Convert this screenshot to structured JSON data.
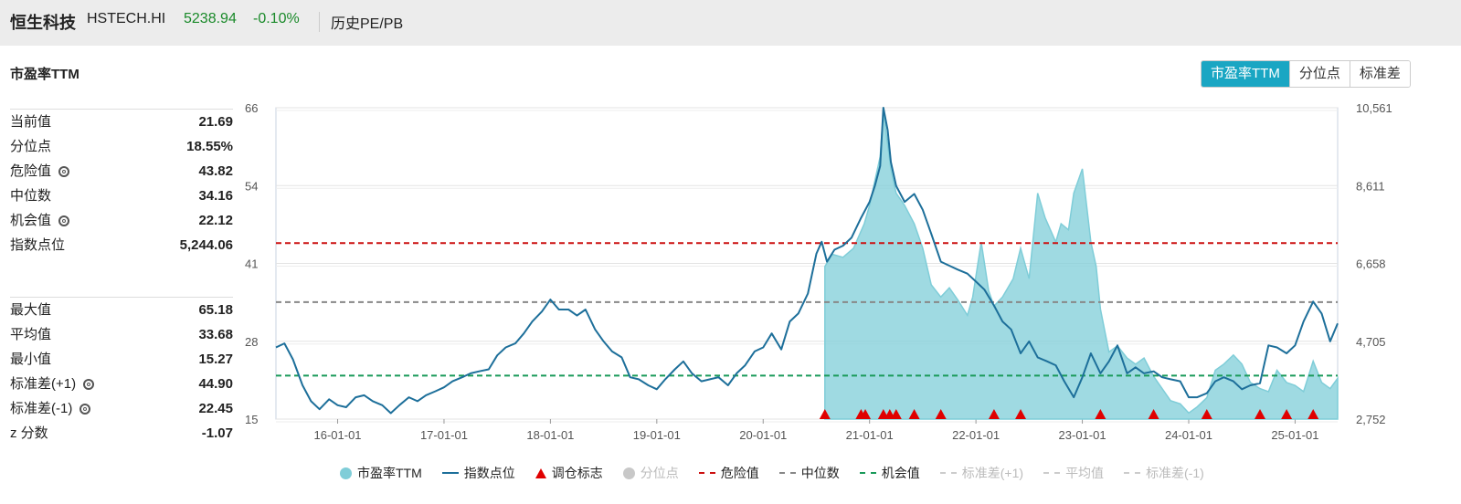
{
  "header": {
    "name": "恒生科技",
    "code": "HSTECH.HI",
    "price": "5238.94",
    "change": "-0.10%",
    "history_label": "历史PE/PB"
  },
  "section_title": "市盈率TTM",
  "tabs": [
    {
      "label": "市盈率TTM",
      "active": true
    },
    {
      "label": "分位点",
      "active": false
    },
    {
      "label": "标准差",
      "active": false
    }
  ],
  "stats_primary": [
    {
      "label": "当前值",
      "value": "21.69",
      "gear": false
    },
    {
      "label": "分位点",
      "value": "18.55%",
      "gear": false
    },
    {
      "label": "危险值",
      "value": "43.82",
      "gear": true
    },
    {
      "label": "中位数",
      "value": "34.16",
      "gear": false
    },
    {
      "label": "机会值",
      "value": "22.12",
      "gear": true
    },
    {
      "label": "指数点位",
      "value": "5,244.06",
      "gear": false
    }
  ],
  "stats_secondary": [
    {
      "label": "最大值",
      "value": "65.18",
      "gear": false
    },
    {
      "label": "平均值",
      "value": "33.68",
      "gear": false
    },
    {
      "label": "最小值",
      "value": "15.27",
      "gear": false
    },
    {
      "label": "标准差(+1)",
      "value": "44.90",
      "gear": true
    },
    {
      "label": "标准差(-1)",
      "value": "22.45",
      "gear": true
    },
    {
      "label": "z 分数",
      "value": "-1.07",
      "gear": false
    }
  ],
  "legend": [
    {
      "label": "市盈率TTM",
      "symbol": "circle",
      "color": "#7fcdd8",
      "enabled": true
    },
    {
      "label": "指数点位",
      "symbol": "line",
      "color": "#1d6f9a",
      "enabled": true
    },
    {
      "label": "调仓标志",
      "symbol": "triangle",
      "color": "#e00000",
      "enabled": true
    },
    {
      "label": "分位点",
      "symbol": "circle",
      "color": "#c8c8c8",
      "enabled": false
    },
    {
      "label": "危险值",
      "symbol": "dash",
      "color": "#cc1111",
      "enabled": true
    },
    {
      "label": "中位数",
      "symbol": "dash",
      "color": "#888888",
      "enabled": true
    },
    {
      "label": "机会值",
      "symbol": "dash",
      "color": "#1a9a5a",
      "enabled": true
    },
    {
      "label": "标准差(+1)",
      "symbol": "dash",
      "color": "#cccccc",
      "enabled": false
    },
    {
      "label": "平均值",
      "symbol": "dash",
      "color": "#cccccc",
      "enabled": false
    },
    {
      "label": "标准差(-1)",
      "symbol": "dash",
      "color": "#cccccc",
      "enabled": false
    }
  ],
  "chart_data": {
    "type": "line",
    "x_ticks": [
      "16-01-01",
      "17-01-01",
      "18-01-01",
      "19-01-01",
      "20-01-01",
      "21-01-01",
      "22-01-01",
      "23-01-01",
      "24-01-01",
      "25-01-01"
    ],
    "x_tick_years": [
      2016,
      2017,
      2018,
      2019,
      2020,
      2021,
      2022,
      2023,
      2024,
      2025
    ],
    "x_range": [
      2015.42,
      2025.4
    ],
    "y_left_ticks": [
      "15",
      "28",
      "41",
      "54",
      "66"
    ],
    "y_left_range": [
      15,
      66
    ],
    "y_right_ticks": [
      "2,752",
      "4,705",
      "6,658",
      "8,611",
      "10,561"
    ],
    "y_right_range": [
      2752,
      10561
    ],
    "reference_lines": [
      {
        "name": "危险值",
        "value": 43.82,
        "color": "#cc1111"
      },
      {
        "name": "中位数",
        "value": 34.16,
        "color": "#888888"
      },
      {
        "name": "机会值",
        "value": 22.12,
        "color": "#1a9a5a"
      }
    ],
    "pe_series": {
      "name": "市盈率TTM",
      "color": "#7fcdd8",
      "start": 2020.58,
      "x": [
        2020.58,
        2020.65,
        2020.75,
        2020.85,
        2020.95,
        2021.0,
        2021.05,
        2021.1,
        2021.13,
        2021.17,
        2021.2,
        2021.25,
        2021.33,
        2021.42,
        2021.5,
        2021.58,
        2021.67,
        2021.75,
        2021.83,
        2021.92,
        2021.97,
        2022.05,
        2022.12,
        2022.17,
        2022.25,
        2022.35,
        2022.42,
        2022.5,
        2022.58,
        2022.65,
        2022.75,
        2022.8,
        2022.87,
        2022.92,
        2023.0,
        2023.08,
        2023.13,
        2023.17,
        2023.25,
        2023.33,
        2023.42,
        2023.5,
        2023.58,
        2023.67,
        2023.75,
        2023.83,
        2023.92,
        2024.0,
        2024.08,
        2024.17,
        2024.25,
        2024.33,
        2024.42,
        2024.5,
        2024.58,
        2024.67,
        2024.75,
        2024.83,
        2024.92,
        2025.0,
        2025.08,
        2025.17,
        2025.25,
        2025.33,
        2025.4
      ],
      "y": [
        40.0,
        42.0,
        41.5,
        43.0,
        47.0,
        50.0,
        54.0,
        58.0,
        65.2,
        60.0,
        56.0,
        52.0,
        50.0,
        47.0,
        43.0,
        37.0,
        35.0,
        36.5,
        34.5,
        32.0,
        35.0,
        44.0,
        36.0,
        33.5,
        35.0,
        38.0,
        43.0,
        38.0,
        52.0,
        48.0,
        44.0,
        47.0,
        46.0,
        52.0,
        56.0,
        44.0,
        40.0,
        33.0,
        26.0,
        27.0,
        25.0,
        24.0,
        25.0,
        22.0,
        20.0,
        18.0,
        17.5,
        16.0,
        17.0,
        18.5,
        23.0,
        24.0,
        25.5,
        24.0,
        21.0,
        20.0,
        19.5,
        23.0,
        21.0,
        20.5,
        19.5,
        24.5,
        21.0,
        20.0,
        21.69
      ]
    },
    "index_series": {
      "name": "指数点位",
      "color": "#1d6f9a",
      "x": [
        2015.42,
        2015.5,
        2015.58,
        2015.67,
        2015.75,
        2015.83,
        2015.92,
        2016.0,
        2016.08,
        2016.17,
        2016.25,
        2016.33,
        2016.42,
        2016.5,
        2016.58,
        2016.67,
        2016.75,
        2016.83,
        2016.92,
        2017.0,
        2017.08,
        2017.17,
        2017.25,
        2017.33,
        2017.42,
        2017.5,
        2017.58,
        2017.67,
        2017.75,
        2017.83,
        2017.92,
        2018.0,
        2018.08,
        2018.17,
        2018.25,
        2018.33,
        2018.42,
        2018.5,
        2018.58,
        2018.67,
        2018.75,
        2018.83,
        2018.92,
        2019.0,
        2019.08,
        2019.17,
        2019.25,
        2019.33,
        2019.42,
        2019.5,
        2019.58,
        2019.67,
        2019.75,
        2019.83,
        2019.92,
        2020.0,
        2020.08,
        2020.17,
        2020.25,
        2020.33,
        2020.42,
        2020.5,
        2020.55,
        2020.6,
        2020.67,
        2020.75,
        2020.83,
        2020.92,
        2021.0,
        2021.05,
        2021.1,
        2021.13,
        2021.17,
        2021.2,
        2021.25,
        2021.33,
        2021.42,
        2021.5,
        2021.58,
        2021.67,
        2021.75,
        2021.83,
        2021.92,
        2022.0,
        2022.08,
        2022.17,
        2022.25,
        2022.33,
        2022.42,
        2022.5,
        2022.58,
        2022.67,
        2022.75,
        2022.83,
        2022.92,
        2023.0,
        2023.08,
        2023.17,
        2023.25,
        2023.33,
        2023.42,
        2023.5,
        2023.58,
        2023.67,
        2023.75,
        2023.83,
        2023.92,
        2024.0,
        2024.08,
        2024.17,
        2024.25,
        2024.33,
        2024.42,
        2024.5,
        2024.58,
        2024.67,
        2024.75,
        2024.83,
        2024.92,
        2025.0,
        2025.08,
        2025.17,
        2025.25,
        2025.33,
        2025.4
      ],
      "y": [
        4550,
        4650,
        4250,
        3600,
        3200,
        3000,
        3250,
        3100,
        3050,
        3300,
        3350,
        3200,
        3100,
        2900,
        3100,
        3300,
        3200,
        3350,
        3450,
        3550,
        3700,
        3800,
        3900,
        3950,
        4000,
        4350,
        4550,
        4650,
        4900,
        5200,
        5450,
        5750,
        5500,
        5500,
        5350,
        5500,
        5000,
        4700,
        4450,
        4300,
        3800,
        3750,
        3600,
        3500,
        3750,
        4000,
        4200,
        3900,
        3700,
        3750,
        3800,
        3600,
        3900,
        4100,
        4450,
        4550,
        4900,
        4500,
        5200,
        5400,
        5900,
        6900,
        7200,
        6700,
        7000,
        7100,
        7300,
        7800,
        8200,
        8600,
        9100,
        10561,
        10000,
        9200,
        8600,
        8200,
        8400,
        8000,
        7400,
        6700,
        6600,
        6500,
        6400,
        6200,
        6000,
        5600,
        5200,
        5000,
        4400,
        4700,
        4300,
        4200,
        4100,
        3700,
        3300,
        3800,
        4400,
        3900,
        4200,
        4600,
        3900,
        4050,
        3900,
        3950,
        3800,
        3750,
        3700,
        3300,
        3300,
        3400,
        3700,
        3800,
        3700,
        3500,
        3600,
        3650,
        4600,
        4550,
        4400,
        4600,
        5200,
        5700,
        5400,
        4700,
        5150
      ]
    },
    "rebalance_markers": {
      "name": "调仓标志",
      "color": "#e00000",
      "x": [
        2020.58,
        2020.92,
        2020.96,
        2021.13,
        2021.19,
        2021.25,
        2021.42,
        2021.67,
        2022.17,
        2022.42,
        2023.17,
        2023.67,
        2024.17,
        2024.67,
        2024.92,
        2025.17
      ]
    }
  }
}
